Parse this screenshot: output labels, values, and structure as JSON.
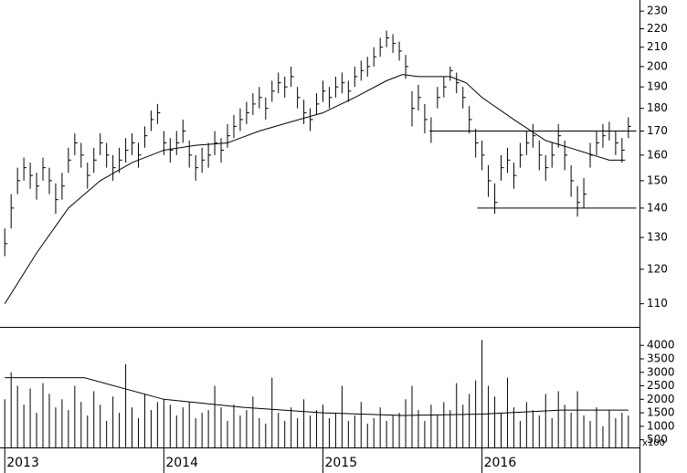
{
  "chart_data": [
    {
      "type": "ohlc",
      "ylim": [
        104,
        236
      ],
      "log_scale": true,
      "yticks": [
        110,
        120,
        130,
        140,
        150,
        160,
        170,
        180,
        190,
        200,
        210,
        220,
        230
      ],
      "xlim": [
        2012.97,
        2016.99
      ],
      "xticks": [
        2013,
        2014,
        2015,
        2016
      ],
      "color": "#000000",
      "x": [
        2013,
        2013.04,
        2013.08,
        2013.12,
        2013.16,
        2013.2,
        2013.24,
        2013.28,
        2013.32,
        2013.36,
        2013.4,
        2013.44,
        2013.48,
        2013.52,
        2013.56,
        2013.6,
        2013.64,
        2013.68,
        2013.72,
        2013.76,
        2013.8,
        2013.84,
        2013.88,
        2013.92,
        2013.96,
        2014,
        2014.04,
        2014.08,
        2014.12,
        2014.16,
        2014.2,
        2014.24,
        2014.28,
        2014.32,
        2014.36,
        2014.4,
        2014.44,
        2014.48,
        2014.52,
        2014.56,
        2014.6,
        2014.64,
        2014.68,
        2014.72,
        2014.76,
        2014.8,
        2014.84,
        2014.88,
        2014.92,
        2014.96,
        2015,
        2015.04,
        2015.08,
        2015.12,
        2015.16,
        2015.2,
        2015.24,
        2015.28,
        2015.32,
        2015.36,
        2015.4,
        2015.44,
        2015.48,
        2015.52,
        2015.56,
        2015.6,
        2015.64,
        2015.68,
        2015.72,
        2015.76,
        2015.8,
        2015.84,
        2015.88,
        2015.92,
        2015.96,
        2016,
        2016.04,
        2016.08,
        2016.12,
        2016.16,
        2016.2,
        2016.24,
        2016.28,
        2016.32,
        2016.36,
        2016.4,
        2016.44,
        2016.48,
        2016.52,
        2016.56,
        2016.6,
        2016.64,
        2016.68,
        2016.72,
        2016.76,
        2016.8,
        2016.84,
        2016.88,
        2016.92
      ],
      "high": [
        133,
        145,
        155,
        159,
        157,
        153,
        159,
        155,
        149,
        153,
        163,
        169,
        165,
        157,
        163,
        169,
        165,
        160,
        163,
        167,
        169,
        165,
        172,
        179,
        182,
        170,
        167,
        170,
        175,
        166,
        160,
        163,
        165,
        170,
        167,
        173,
        177,
        180,
        183,
        187,
        190,
        185,
        193,
        197,
        195,
        200,
        190,
        184,
        180,
        187,
        193,
        190,
        195,
        197,
        193,
        200,
        203,
        205,
        210,
        215,
        219,
        217,
        213,
        206,
        188,
        191,
        182,
        176,
        190,
        195,
        200,
        197,
        190,
        181,
        171,
        166,
        156,
        149,
        160,
        163,
        157,
        165,
        170,
        173,
        166,
        160,
        165,
        173,
        166,
        156,
        148,
        151,
        165,
        170,
        173,
        174,
        170,
        167,
        176
      ],
      "low": [
        124,
        133,
        145,
        150,
        147,
        143,
        150,
        145,
        138,
        143,
        153,
        160,
        155,
        147,
        153,
        160,
        155,
        150,
        153,
        157,
        160,
        155,
        163,
        170,
        173,
        160,
        157,
        160,
        165,
        155,
        150,
        153,
        155,
        160,
        157,
        163,
        167,
        170,
        173,
        177,
        180,
        175,
        183,
        187,
        185,
        190,
        180,
        173,
        170,
        177,
        183,
        180,
        185,
        187,
        183,
        190,
        193,
        195,
        200,
        205,
        210,
        207,
        203,
        194,
        172,
        179,
        169,
        165,
        180,
        185,
        193,
        187,
        180,
        169,
        159,
        154,
        144,
        138,
        150,
        153,
        147,
        155,
        160,
        163,
        154,
        150,
        155,
        163,
        154,
        144,
        137,
        140,
        155,
        160,
        163,
        166,
        160,
        157,
        167
      ],
      "close": [
        128,
        140,
        150,
        155,
        152,
        148,
        155,
        150,
        143,
        148,
        158,
        165,
        160,
        152,
        158,
        165,
        160,
        155,
        158,
        162,
        165,
        160,
        168,
        175,
        178,
        165,
        162,
        165,
        170,
        160,
        155,
        158,
        160,
        165,
        162,
        168,
        172,
        175,
        178,
        182,
        185,
        180,
        188,
        192,
        190,
        195,
        185,
        178,
        175,
        182,
        188,
        185,
        190,
        192,
        188,
        195,
        198,
        200,
        205,
        210,
        215,
        212,
        208,
        200,
        180,
        185,
        175,
        170,
        185,
        190,
        198,
        192,
        185,
        175,
        165,
        160,
        150,
        142,
        155,
        158,
        152,
        160,
        165,
        168,
        160,
        155,
        160,
        168,
        160,
        150,
        142,
        145,
        160,
        165,
        168,
        170,
        165,
        162,
        172
      ],
      "moving_average": {
        "x": [
          2013,
          2013.2,
          2013.4,
          2013.6,
          2013.8,
          2014,
          2014.2,
          2014.4,
          2014.6,
          2014.8,
          2015,
          2015.2,
          2015.4,
          2015.5,
          2015.6,
          2015.8,
          2015.9,
          2016,
          2016.2,
          2016.4,
          2016.6,
          2016.8,
          2016.9
        ],
        "values": [
          110,
          125,
          140,
          150,
          157,
          162,
          164,
          165,
          170,
          174,
          178,
          185,
          193,
          196,
          195,
          195,
          192,
          185,
          175,
          166,
          162,
          158,
          158
        ]
      },
      "hlines": [
        {
          "value": 170,
          "x": [
            2015.67,
            2016.97
          ]
        },
        {
          "value": 140,
          "x": [
            2015.97,
            2016.97
          ]
        }
      ]
    },
    {
      "type": "bar",
      "ylim": [
        250,
        4650
      ],
      "yticks": [
        500,
        1000,
        1500,
        2000,
        2500,
        3000,
        3500,
        4000
      ],
      "unit_label": "x100",
      "color": "#000000",
      "values": [
        2000,
        3000,
        2500,
        1800,
        2400,
        1500,
        2600,
        2200,
        1700,
        2000,
        1600,
        2500,
        1900,
        1400,
        2300,
        1800,
        1200,
        2100,
        1500,
        3300,
        1700,
        1300,
        2200,
        1600,
        1900,
        2000,
        1800,
        1400,
        1700,
        1900,
        1300,
        1500,
        1600,
        2500,
        1700,
        1200,
        1800,
        1400,
        1600,
        2100,
        1300,
        1100,
        2800,
        1500,
        1200,
        1700,
        1300,
        2000,
        1400,
        1600,
        1800,
        1300,
        1500,
        2500,
        1200,
        1400,
        1900,
        1100,
        1300,
        1700,
        1200,
        1400,
        1500,
        2000,
        2500,
        1600,
        1200,
        1800,
        1400,
        1900,
        1600,
        2600,
        1800,
        2200,
        2700,
        4200,
        2500,
        2100,
        1500,
        2800,
        1700,
        1200,
        1900,
        1600,
        1400,
        2200,
        1300,
        2300,
        1800,
        1500,
        2300,
        1400,
        1200,
        1700,
        1000,
        1600,
        1300,
        1500,
        1400
      ],
      "moving_average": {
        "x": [
          2013,
          2013.5,
          2014,
          2014.5,
          2015,
          2015.5,
          2016,
          2016.5,
          2016.92
        ],
        "values": [
          2800,
          2800,
          2000,
          1700,
          1500,
          1400,
          1450,
          1600,
          1600
        ]
      }
    }
  ]
}
